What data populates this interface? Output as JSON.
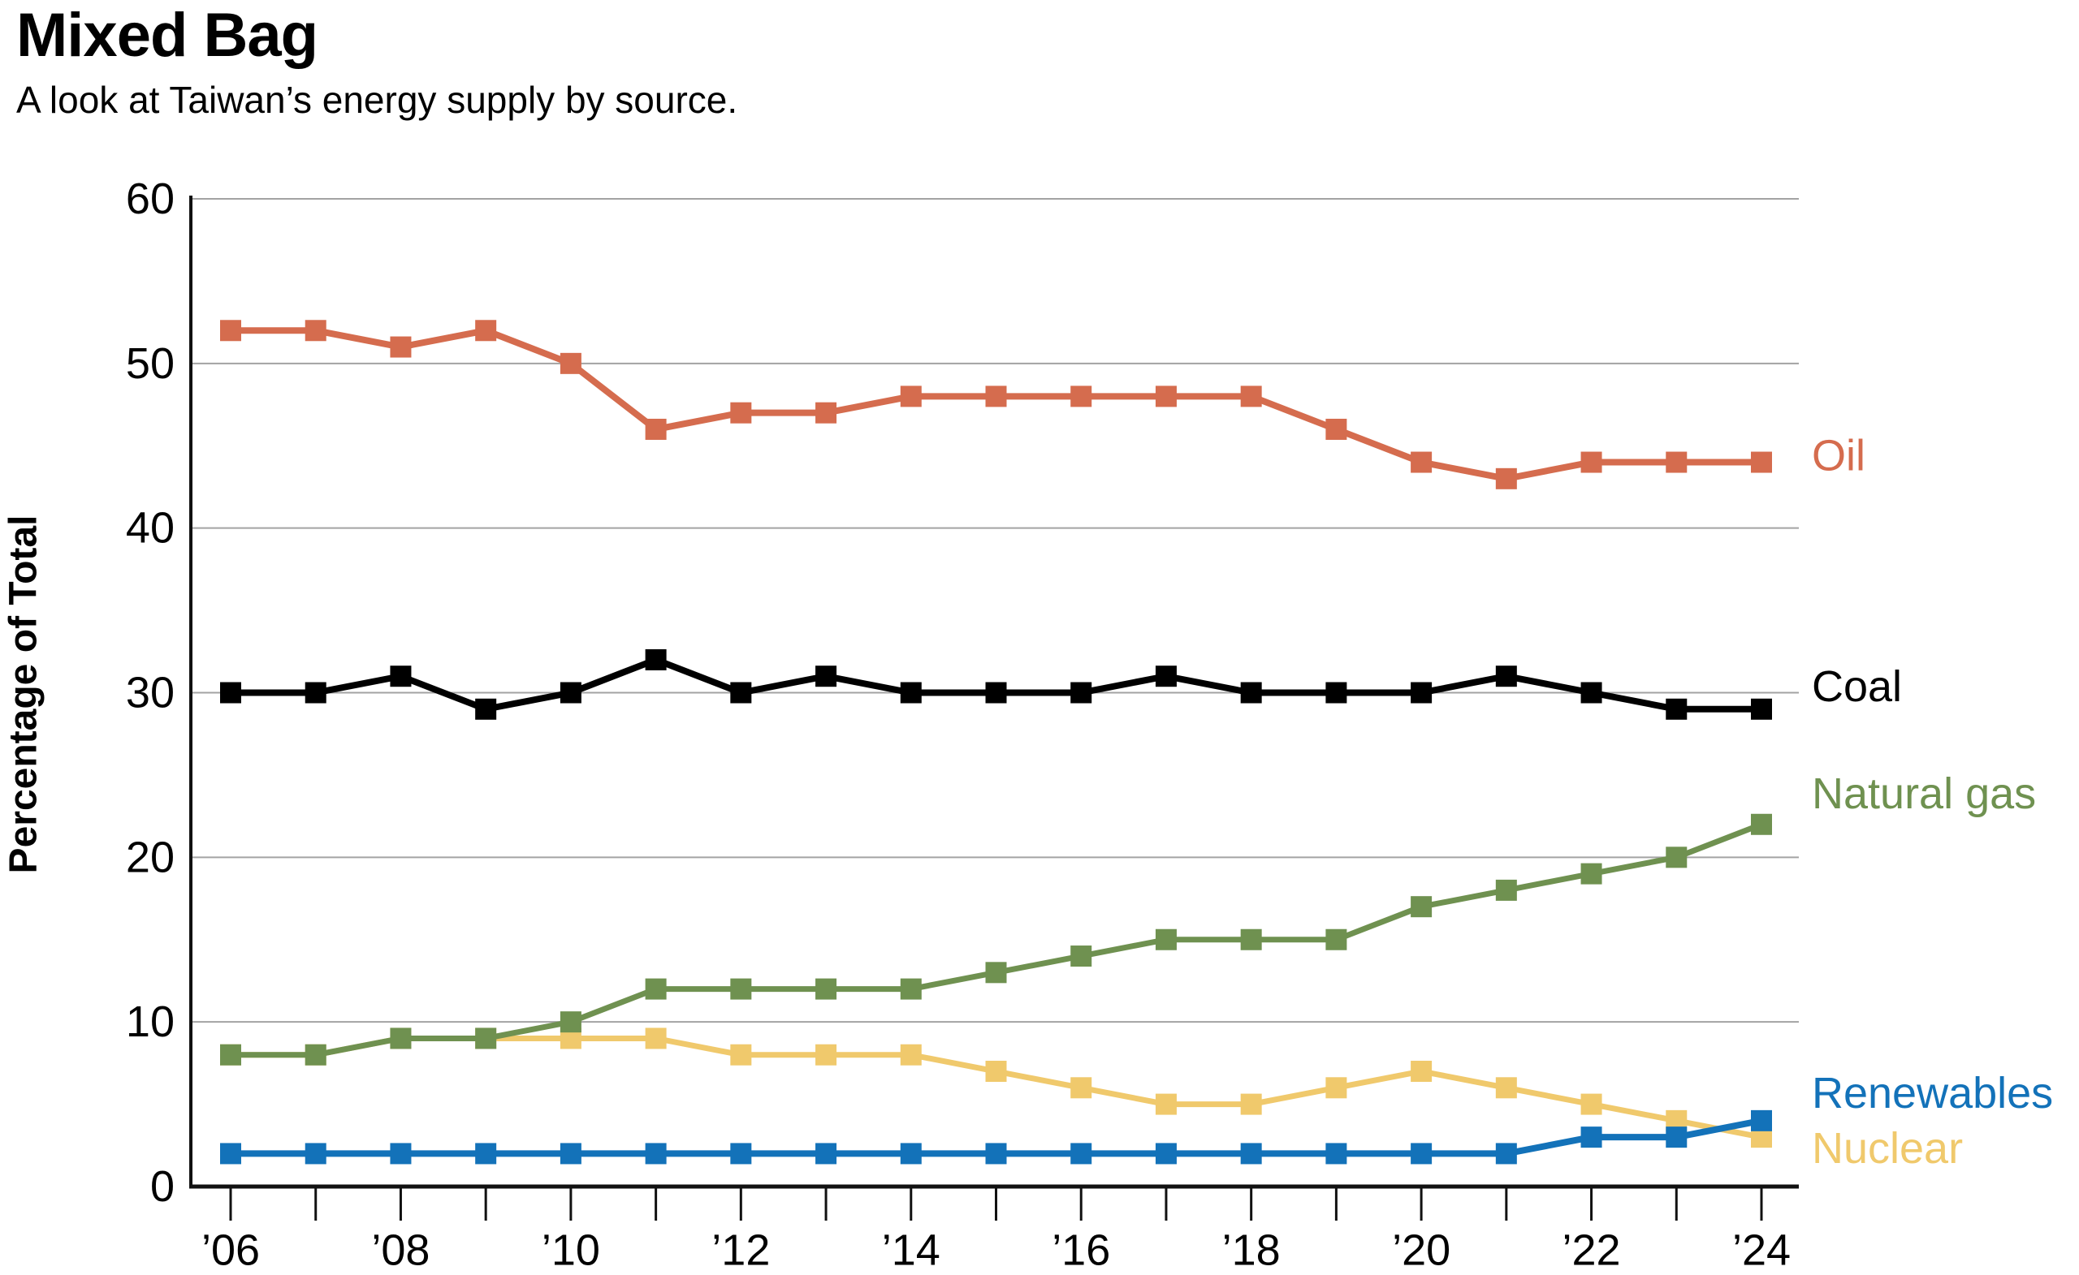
{
  "header": {
    "title": "Mixed Bag",
    "subtitle": "A look at Taiwan’s energy supply by source."
  },
  "chart_data": {
    "type": "line",
    "title": "Mixed Bag",
    "subtitle": "A look at Taiwan’s energy supply by source.",
    "ylabel": "Percentage of Total",
    "xlabel": "",
    "ylim": [
      0,
      60
    ],
    "yticks": [
      0,
      10,
      20,
      30,
      40,
      50,
      60
    ],
    "grid": "horizontal",
    "grid_color": "#a3a3a3",
    "axis_color": "#111111",
    "legend_position": "right-end-labels",
    "marker": "square",
    "x": [
      2006,
      2007,
      2008,
      2009,
      2010,
      2011,
      2012,
      2013,
      2014,
      2015,
      2016,
      2017,
      2018,
      2019,
      2020,
      2021,
      2022,
      2023,
      2024
    ],
    "xtick_labels": [
      {
        "year": 2006,
        "label": "’06"
      },
      {
        "year": 2008,
        "label": "’08"
      },
      {
        "year": 2010,
        "label": "’10"
      },
      {
        "year": 2012,
        "label": "’12"
      },
      {
        "year": 2014,
        "label": "’14"
      },
      {
        "year": 2016,
        "label": "’16"
      },
      {
        "year": 2018,
        "label": "’18"
      },
      {
        "year": 2020,
        "label": "’20"
      },
      {
        "year": 2022,
        "label": "’22"
      },
      {
        "year": 2024,
        "label": "’24"
      }
    ],
    "series": [
      {
        "name": "Oil",
        "color": "#D56C4E",
        "values": [
          52,
          52,
          51,
          52,
          50,
          46,
          47,
          47,
          48,
          48,
          48,
          48,
          48,
          46,
          44,
          43,
          44,
          44,
          44
        ]
      },
      {
        "name": "Coal",
        "color": "#000000",
        "values": [
          30,
          30,
          31,
          29,
          30,
          32,
          30,
          31,
          30,
          30,
          30,
          31,
          30,
          30,
          30,
          31,
          30,
          29,
          29
        ]
      },
      {
        "name": "Natural gas",
        "color": "#6F9150",
        "values": [
          8,
          8,
          9,
          9,
          10,
          12,
          12,
          12,
          12,
          13,
          14,
          15,
          15,
          15,
          17,
          18,
          19,
          20,
          22
        ]
      },
      {
        "name": "Renewables",
        "color": "#1372B9",
        "values": [
          2,
          2,
          2,
          2,
          2,
          2,
          2,
          2,
          2,
          2,
          2,
          2,
          2,
          2,
          2,
          2,
          3,
          3,
          4
        ]
      },
      {
        "name": "Nuclear",
        "color": "#F0C96C",
        "values": [
          8,
          8,
          9,
          9,
          9,
          9,
          8,
          8,
          8,
          7,
          6,
          5,
          5,
          6,
          7,
          6,
          5,
          4,
          3
        ]
      }
    ]
  }
}
